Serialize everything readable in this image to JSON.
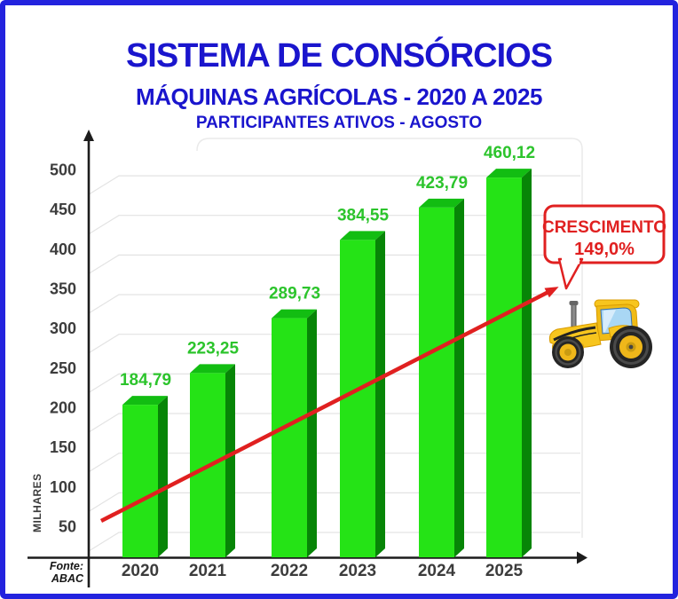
{
  "page": {
    "background": "#FFFFFF",
    "border_color": "#2323DE"
  },
  "header": {
    "title": "SISTEMA DE CONSÓRCIOS",
    "subtitle": "MÁQUINAS AGRÍCOLAS - 2020 A 2025",
    "subtitle2": "PARTICIPANTES ATIVOS - AGOSTO",
    "color": "#1A15CD"
  },
  "chart_data": {
    "type": "bar",
    "style": "3d-column",
    "title": "PARTICIPANTES ATIVOS - AGOSTO",
    "categories": [
      "2020",
      "2021",
      "2022",
      "2023",
      "2024",
      "2025"
    ],
    "values": [
      184.79,
      223.25,
      289.73,
      384.55,
      423.79,
      460.12
    ],
    "value_labels": [
      "184,79",
      "223,25",
      "289,73",
      "384,55",
      "423,79",
      "460,12"
    ],
    "xlabel": "",
    "ylabel": "MILHARES",
    "yticks": [
      50,
      100,
      150,
      200,
      250,
      300,
      350,
      400,
      450,
      500
    ],
    "ylim": [
      0,
      525
    ],
    "grid": true,
    "legend": false,
    "colors": {
      "bar_front": "#25E316",
      "bar_side": "#078507",
      "bar_top": "#12BD12",
      "value_label": "#2CC42C",
      "axis": "#1C1C1C",
      "tick_label": "#3C3C3C",
      "gridline": "#E3E3E3"
    }
  },
  "annotation": {
    "line1": "CRESCIMENTO",
    "line2": "149,0%",
    "color": "#E02020",
    "trend_arrow_color": "#E02020"
  },
  "footer": {
    "source": "Fonte: ABAC"
  },
  "decorations": {
    "tractor": "tractor-illustration"
  }
}
